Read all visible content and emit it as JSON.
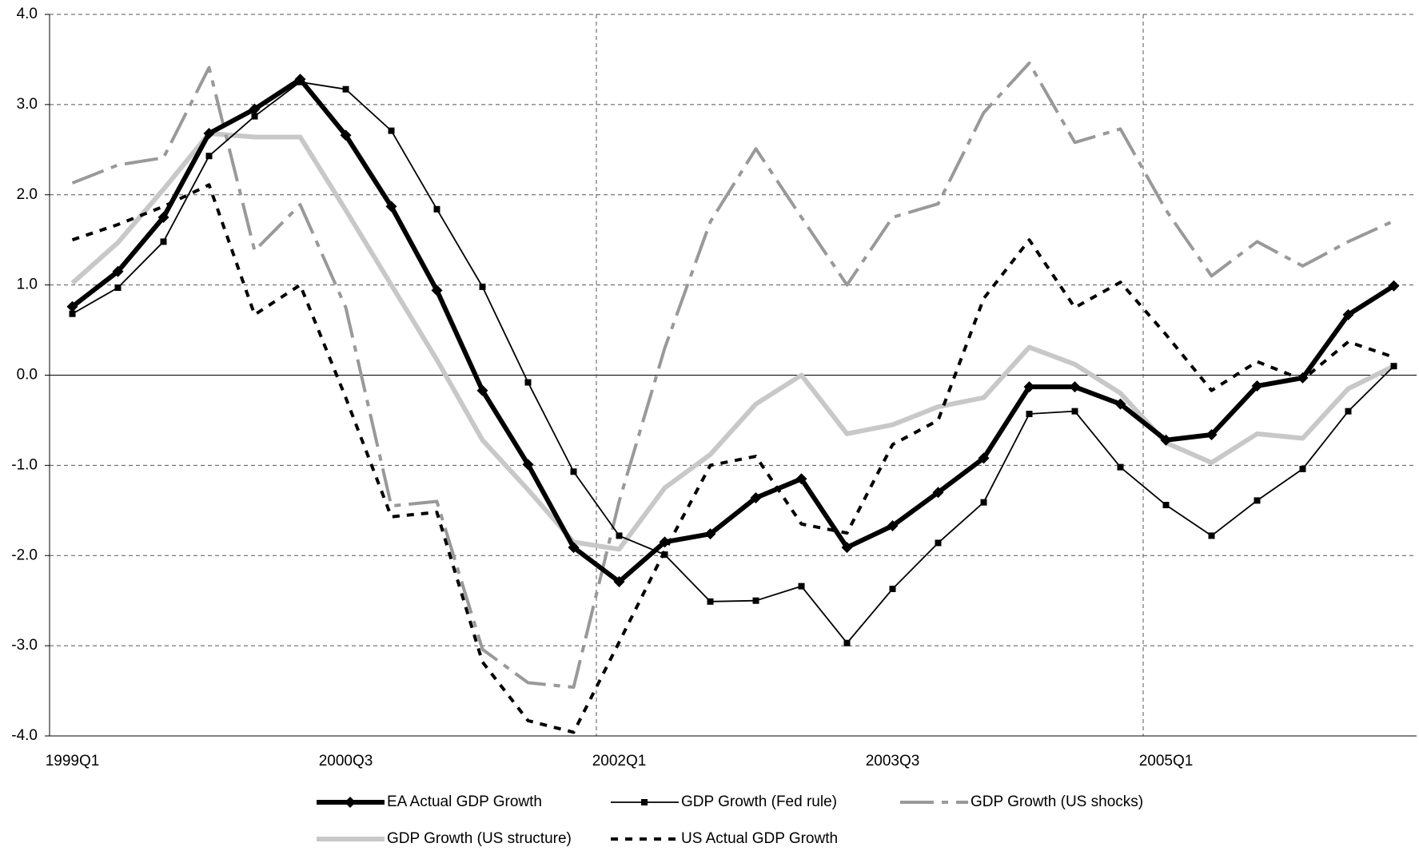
{
  "chart_data": {
    "type": "line",
    "categories": [
      "1999Q1",
      null,
      null,
      null,
      null,
      null,
      "2000Q3",
      null,
      null,
      null,
      null,
      null,
      "2002Q1",
      null,
      null,
      null,
      null,
      null,
      "2003Q3",
      null,
      null,
      null,
      null,
      null,
      "2005Q1",
      null,
      null,
      null,
      null,
      null
    ],
    "series": [
      {
        "name": "EA Actual GDP Growth",
        "color": "#000000",
        "values": [
          0.76,
          1.15,
          1.75,
          2.68,
          2.95,
          3.28,
          2.66,
          1.87,
          0.94,
          -0.17,
          -0.99,
          -1.91,
          -2.29,
          -1.85,
          -1.76,
          -1.36,
          -1.15,
          -1.91,
          -1.67,
          -1.3,
          -0.92,
          -0.13,
          -0.13,
          -0.32,
          -0.72,
          -0.66,
          -0.12,
          -0.03,
          0.67,
          0.99
        ]
      },
      {
        "name": "GDP Growth (Fed rule)",
        "color": "#000000",
        "values": [
          0.68,
          0.97,
          1.48,
          2.43,
          2.87,
          3.25,
          3.17,
          2.71,
          1.84,
          0.98,
          -0.08,
          -1.07,
          -1.78,
          -1.99,
          -2.51,
          -2.5,
          -2.34,
          -2.97,
          -2.37,
          -1.86,
          -1.41,
          -0.43,
          -0.4,
          -1.02,
          -1.44,
          -1.78,
          -1.39,
          -1.04,
          -0.4,
          0.1
        ]
      },
      {
        "name": "GDP Growth (US shocks)",
        "color": "#999999",
        "values": [
          2.13,
          2.33,
          2.41,
          3.41,
          1.38,
          1.89,
          0.75,
          -1.45,
          -1.4,
          -3.04,
          -3.41,
          -3.46,
          -1.4,
          0.3,
          1.7,
          2.51,
          1.75,
          1.0,
          1.75,
          1.9,
          2.91,
          3.46,
          2.58,
          2.73,
          1.83,
          1.1,
          1.48,
          1.21,
          1.48,
          1.71
        ]
      },
      {
        "name": "GDP Growth (US structure)",
        "color": "#c8c8c8",
        "values": [
          1.02,
          1.47,
          2.06,
          2.68,
          2.64,
          2.64,
          1.83,
          1.0,
          0.17,
          -0.72,
          -1.27,
          -1.85,
          -1.93,
          -1.25,
          -0.88,
          -0.32,
          0.0,
          -0.65,
          -0.55,
          -0.35,
          -0.25,
          0.31,
          0.12,
          -0.2,
          -0.75,
          -0.97,
          -0.65,
          -0.7,
          -0.15,
          0.1
        ]
      },
      {
        "name": "US Actual GDP Growth",
        "color": "#000000",
        "values": [
          1.5,
          1.67,
          1.87,
          2.11,
          0.67,
          1.0,
          -0.25,
          -1.57,
          -1.52,
          -3.18,
          -3.83,
          -3.96,
          -2.96,
          -1.95,
          -1.0,
          -0.9,
          -1.65,
          -1.75,
          -0.77,
          -0.5,
          0.85,
          1.5,
          0.75,
          1.03,
          0.45,
          -0.17,
          0.15,
          -0.05,
          0.37,
          0.2
        ]
      }
    ],
    "ylim": [
      -4,
      4
    ],
    "yticks": [
      {
        "value": -4,
        "label": "-4.0"
      },
      {
        "value": -3,
        "label": "-3.0"
      },
      {
        "value": -2,
        "label": "-2.0"
      },
      {
        "value": -1,
        "label": "-1.0"
      },
      {
        "value": 0,
        "label": "0.0"
      },
      {
        "value": 1,
        "label": "1.0"
      },
      {
        "value": 2,
        "label": "2.0"
      },
      {
        "value": 3,
        "label": "3.0"
      },
      {
        "value": 4,
        "label": "4.0"
      }
    ],
    "grid": true,
    "legend": "bottom"
  }
}
